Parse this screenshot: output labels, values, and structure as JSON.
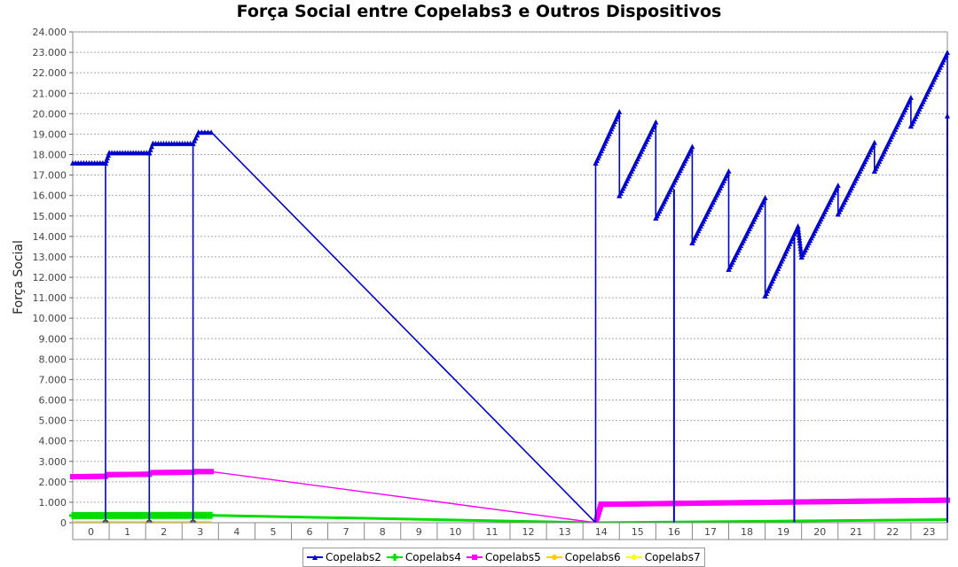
{
  "chart_data": {
    "type": "line",
    "title": "Força Social entre Copelabs3 e Outros Dispositivos",
    "ylabel": "Força Social",
    "xlabel": "",
    "categories": [
      "0",
      "1",
      "2",
      "3",
      "4",
      "5",
      "6",
      "7",
      "8",
      "9",
      "10",
      "11",
      "12",
      "13",
      "14",
      "15",
      "16",
      "17",
      "18",
      "19",
      "20",
      "21",
      "22",
      "23"
    ],
    "yticks": [
      "0",
      "1.000",
      "2.000",
      "3.000",
      "4.000",
      "5.000",
      "6.000",
      "7.000",
      "8.000",
      "9.000",
      "10.000",
      "11.000",
      "12.000",
      "13.000",
      "14.000",
      "15.000",
      "16.000",
      "17.000",
      "18.000",
      "19.000",
      "20.000",
      "21.000",
      "22.000",
      "23.000",
      "24.000"
    ],
    "ylim": [
      0,
      24000
    ],
    "xlim": [
      -0.5,
      23.5
    ],
    "grid": true,
    "legend_position": "bottom",
    "series": [
      {
        "name": "Copelabs2",
        "color": "#0000cc",
        "marker": "triangle",
        "points": [
          [
            -0.5,
            17600
          ],
          [
            0.4,
            17600
          ],
          [
            0.4,
            0
          ],
          [
            0.4,
            17600
          ],
          [
            0.5,
            18100
          ],
          [
            1.6,
            18100
          ],
          [
            1.6,
            0
          ],
          [
            1.6,
            18100
          ],
          [
            1.7,
            18550
          ],
          [
            2.8,
            18550
          ],
          [
            2.8,
            0
          ],
          [
            2.8,
            18550
          ],
          [
            2.95,
            19100
          ],
          [
            3.3,
            19100
          ],
          [
            13.85,
            0
          ],
          [
            13.85,
            17600
          ],
          [
            14.5,
            20100
          ],
          [
            14.5,
            16000
          ],
          [
            15.5,
            19600
          ],
          [
            15.5,
            14900
          ],
          [
            16.5,
            18400
          ],
          [
            16.5,
            13700
          ],
          [
            17.5,
            17200
          ],
          [
            17.5,
            12400
          ],
          [
            18.5,
            15900
          ],
          [
            18.5,
            11100
          ],
          [
            19.4,
            14500
          ],
          [
            19.5,
            13000
          ],
          [
            20.5,
            16500
          ],
          [
            20.5,
            15100
          ],
          [
            21.5,
            18600
          ],
          [
            21.5,
            17200
          ],
          [
            22.5,
            20800
          ],
          [
            22.5,
            19400
          ],
          [
            23.5,
            23000
          ],
          [
            23.5,
            19900
          ]
        ],
        "drops": [
          [
            16.0,
            0,
            16300
          ],
          [
            19.3,
            0,
            13900
          ],
          [
            23.5,
            0,
            19900
          ]
        ]
      },
      {
        "name": "Copelabs4",
        "color": "#00dd00",
        "marker": "plus",
        "points": [
          [
            -0.5,
            350
          ],
          [
            3.3,
            360
          ],
          [
            13.85,
            0
          ],
          [
            23.5,
            150
          ]
        ]
      },
      {
        "name": "Copelabs5",
        "color": "#ff00ff",
        "marker": "square",
        "points": [
          [
            -0.5,
            2250
          ],
          [
            0.4,
            2270
          ],
          [
            0.5,
            2350
          ],
          [
            1.6,
            2370
          ],
          [
            1.7,
            2450
          ],
          [
            2.8,
            2470
          ],
          [
            2.9,
            2500
          ],
          [
            3.3,
            2500
          ],
          [
            13.85,
            0
          ],
          [
            14.0,
            900
          ],
          [
            23.5,
            1100
          ]
        ]
      },
      {
        "name": "Copelabs6",
        "color": "#ffcc00",
        "marker": "circle",
        "points": [
          [
            -0.5,
            0
          ],
          [
            3.3,
            0
          ]
        ]
      },
      {
        "name": "Copelabs7",
        "color": "#ffff00",
        "marker": "star",
        "points": [
          [
            -0.5,
            0
          ],
          [
            3.3,
            0
          ]
        ]
      }
    ]
  }
}
